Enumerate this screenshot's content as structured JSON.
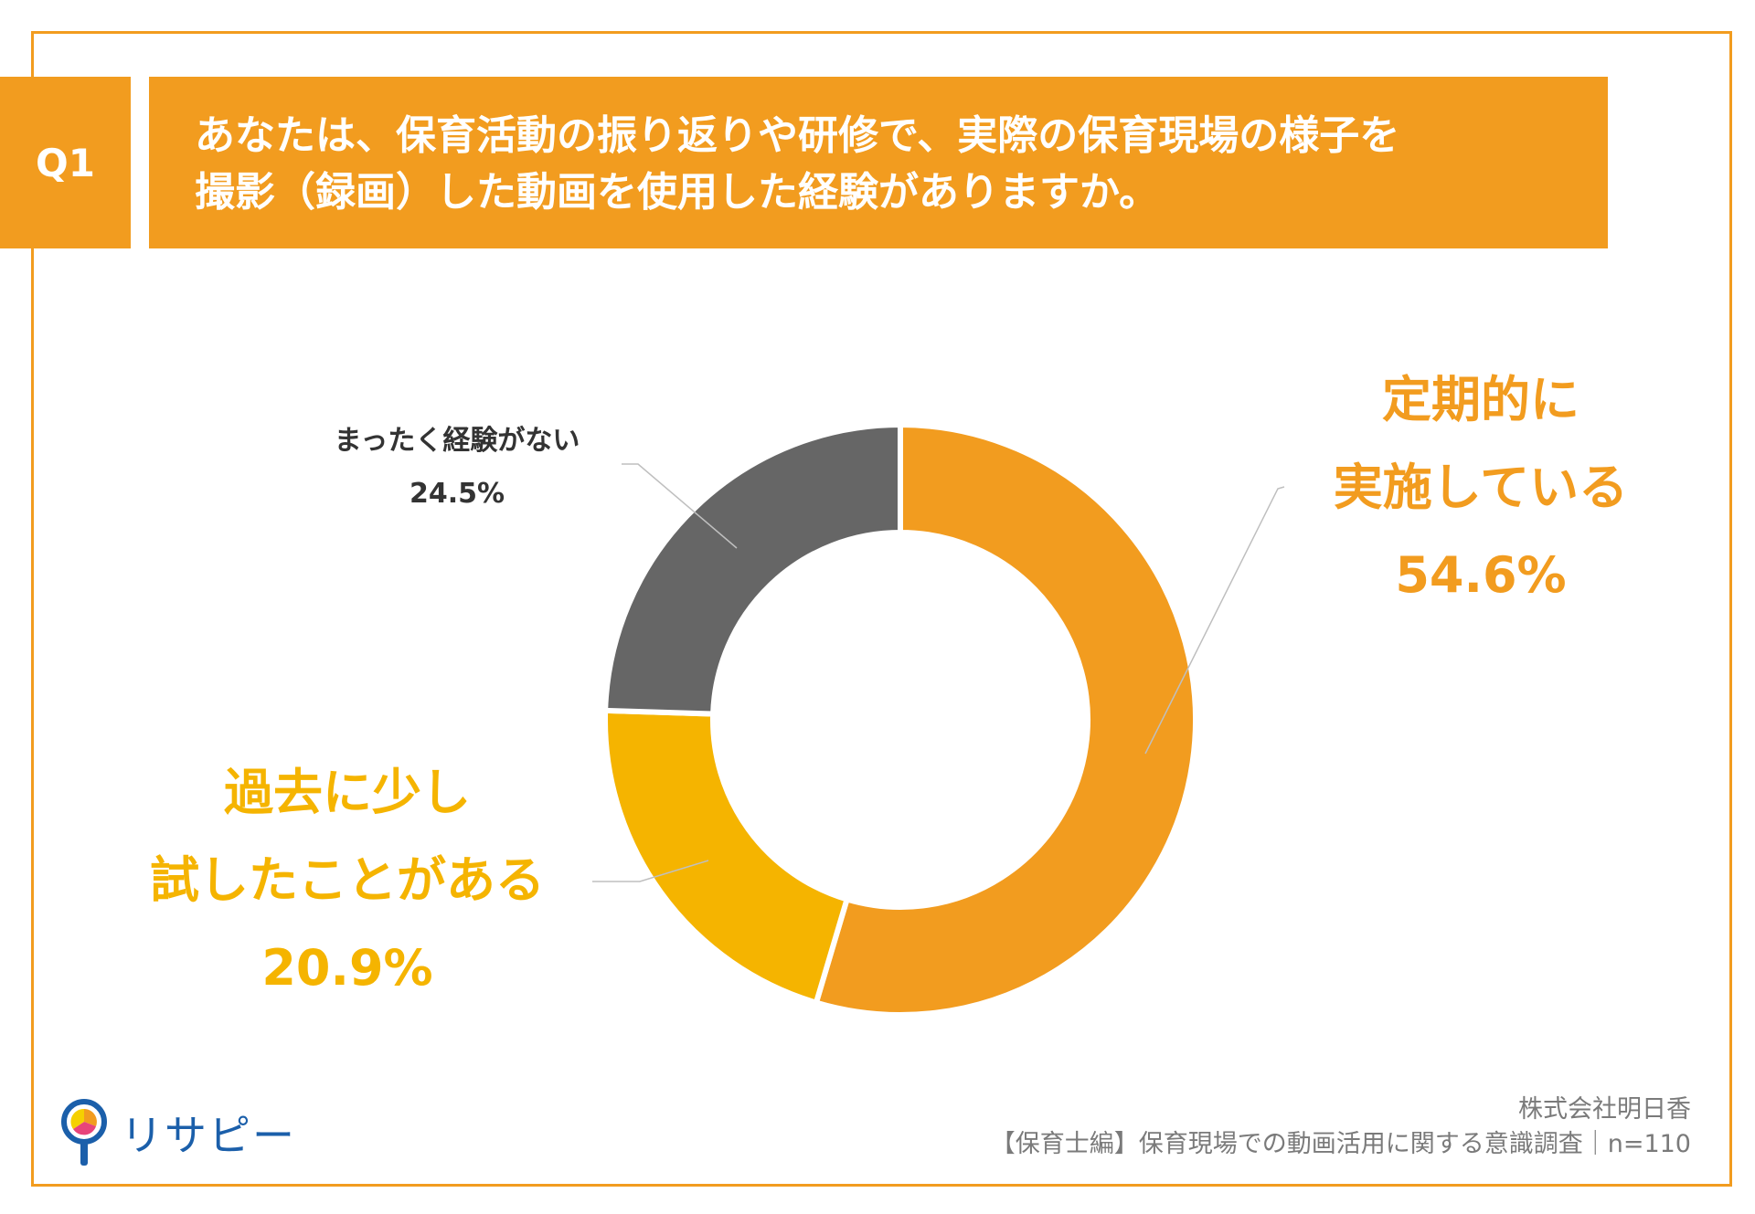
{
  "question": {
    "badge": "Q1",
    "line1": "あなたは、保育活動の振り返りや研修で、実際の保育現場の様子を",
    "line2": "撮影（録画）した動画を使用した経験がありますか。"
  },
  "chart_data": {
    "type": "pie",
    "style": "donut",
    "slices": [
      {
        "label_line1": "定期的に",
        "label_line2": "実施している",
        "value_text": "54.6%",
        "value": 54.6,
        "color": "#f29c1f"
      },
      {
        "label_line1": "過去に少し",
        "label_line2": "試したことがある",
        "value_text": "20.9%",
        "value": 20.9,
        "color": "#f5b400"
      },
      {
        "label_line1": "まったく経験がない",
        "value_text": "24.5%",
        "value": 24.5,
        "color": "#666666"
      }
    ]
  },
  "footer": {
    "logo_text": "リサピー",
    "company": "株式会社明日香",
    "survey": "【保育士編】保育現場での動画活用に関する意識調査｜n=110"
  },
  "colors": {
    "accent": "#f29c1f",
    "yellow": "#f5b400",
    "gray": "#666666"
  }
}
